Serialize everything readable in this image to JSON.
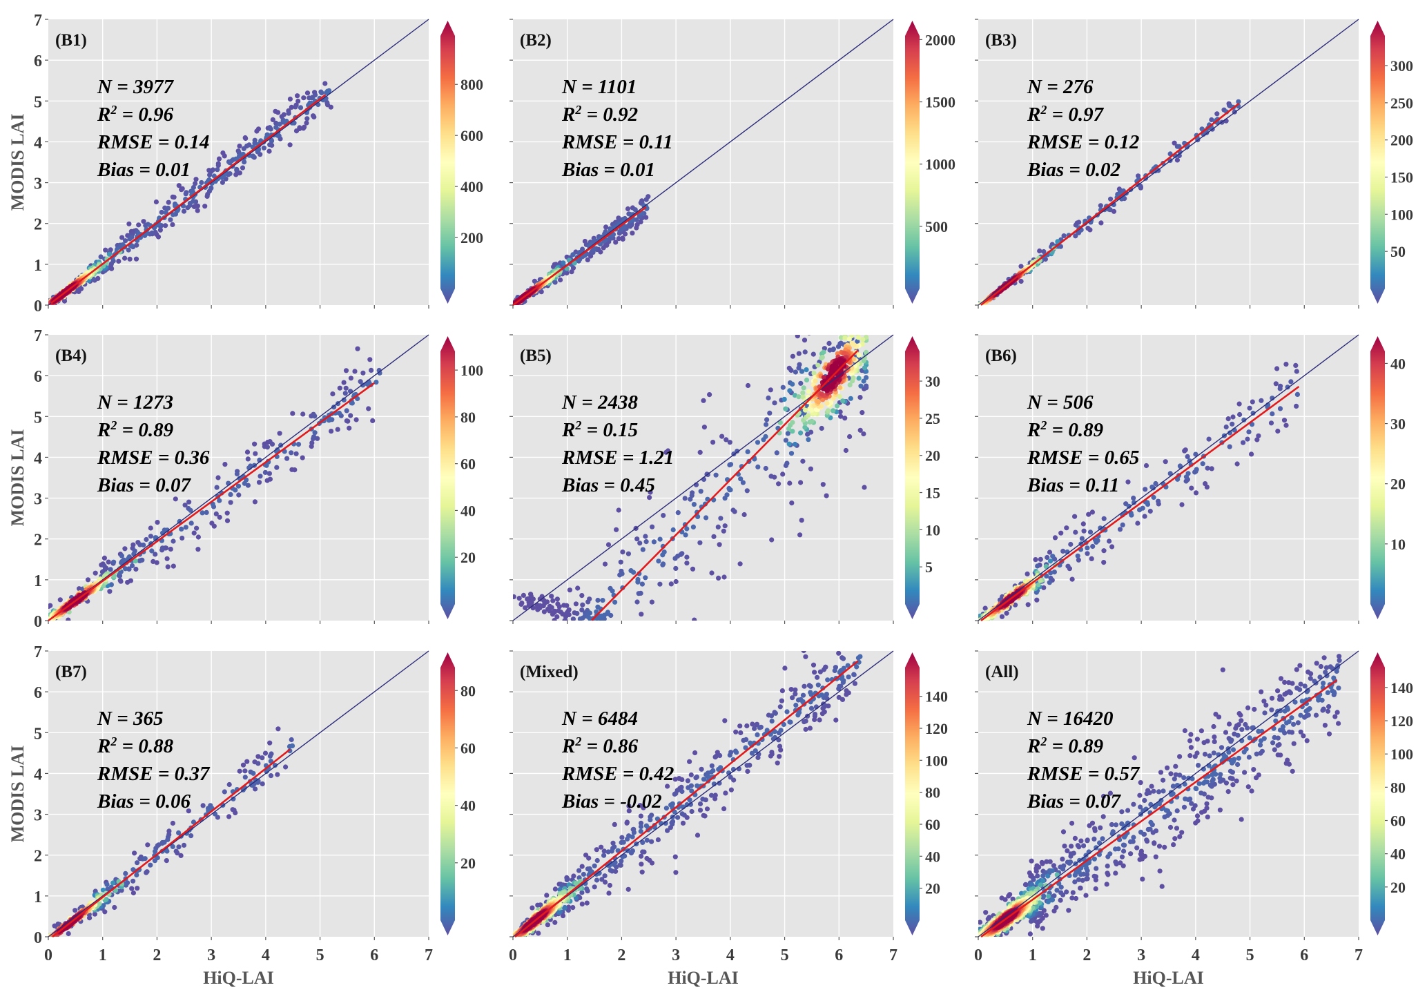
{
  "chart_data": {
    "type": "scatter",
    "title": "",
    "xlabel": "HiQ-LAI",
    "ylabel": "MODIS LAI",
    "xlim": [
      0,
      7
    ],
    "ylim": [
      0,
      7
    ],
    "xticks": [
      "0",
      "1",
      "2",
      "3",
      "4",
      "5",
      "6",
      "7"
    ],
    "yticks": [
      "0",
      "1",
      "2",
      "3",
      "4",
      "5",
      "6",
      "7"
    ],
    "grid": true,
    "colormap": "Spectral_r (density)",
    "reference_line": "1:1",
    "fit_line_color": "#e31a1c",
    "reference_line_color": "#2b2b7a",
    "panels": [
      {
        "label": "(B1)",
        "N": "N = 3977",
        "R2": "0.96",
        "RMSE": "RMSE = 0.14",
        "Bias": "Bias = 0.01",
        "fit": {
          "slope": 1.01,
          "intercept": 0.0,
          "x_range": [
            0.05,
            5.1
          ]
        },
        "spread": 0.22,
        "x_max": 5.2,
        "cluster_center": 0.3,
        "colorbar": {
          "max": 990,
          "ticks": [
            200,
            400,
            600,
            800
          ]
        }
      },
      {
        "label": "(B2)",
        "N": "N = 1101",
        "R2": "0.92",
        "RMSE": "RMSE = 0.11",
        "Bias": "Bias = 0.01",
        "fit": {
          "slope": 0.98,
          "intercept": 0.0,
          "x_range": [
            0.0,
            2.45
          ]
        },
        "spread": 0.18,
        "x_max": 2.5,
        "cluster_center": 0.2,
        "colorbar": {
          "max": 2030,
          "ticks": [
            500,
            1000,
            1500,
            2000
          ]
        }
      },
      {
        "label": "(B3)",
        "N": "N = 276",
        "R2": "0.97",
        "RMSE": "RMSE = 0.12",
        "Bias": "Bias = 0.02",
        "fit": {
          "slope": 1.04,
          "intercept": -0.05,
          "x_range": [
            0.05,
            4.8
          ]
        },
        "spread": 0.12,
        "x_max": 4.8,
        "cluster_center": 0.5,
        "colorbar": {
          "max": 340,
          "ticks": [
            50,
            100,
            150,
            200,
            250,
            300
          ]
        }
      },
      {
        "label": "(B4)",
        "N": "N = 1273",
        "R2": "0.89",
        "RMSE": "RMSE = 0.36",
        "Bias": "Bias = 0.07",
        "fit": {
          "slope": 0.97,
          "intercept": 0.0,
          "x_range": [
            0.0,
            6.0
          ]
        },
        "spread": 0.35,
        "x_max": 6.1,
        "cluster_center": 0.5,
        "colorbar": {
          "max": 108,
          "ticks": [
            20,
            40,
            60,
            80,
            100
          ]
        }
      },
      {
        "label": "(B5)",
        "N": "N = 2438",
        "R2": "0.15",
        "RMSE": "RMSE = 1.21",
        "Bias": "Bias = 0.45",
        "fit": {
          "slope": 1.35,
          "intercept": -1.95,
          "x_range": [
            1.45,
            6.35
          ]
        },
        "spread": 1.0,
        "x_max": 6.5,
        "cluster_center": 5.9,
        "colorbar": {
          "max": 34,
          "ticks": [
            5,
            10,
            15,
            20,
            25,
            30
          ]
        }
      },
      {
        "label": "(B6)",
        "N": "N = 506",
        "R2": "0.89",
        "RMSE": "RMSE = 0.65",
        "Bias": "Bias = 0.11",
        "fit": {
          "slope": 0.98,
          "intercept": -0.05,
          "x_range": [
            0.05,
            5.9
          ]
        },
        "spread": 0.4,
        "x_max": 5.9,
        "cluster_center": 0.6,
        "colorbar": {
          "max": 42,
          "ticks": [
            10,
            20,
            30,
            40
          ]
        }
      },
      {
        "label": "(B7)",
        "N": "N = 365",
        "R2": "0.88",
        "RMSE": "RMSE = 0.37",
        "Bias": "Bias = 0.06",
        "fit": {
          "slope": 1.05,
          "intercept": -0.08,
          "x_range": [
            0.05,
            4.45
          ]
        },
        "spread": 0.3,
        "x_max": 4.5,
        "cluster_center": 0.4,
        "colorbar": {
          "max": 88,
          "ticks": [
            20,
            40,
            60,
            80
          ]
        }
      },
      {
        "label": "(Mixed)",
        "N": "N = 6484",
        "R2": "0.86",
        "RMSE": "RMSE = 0.42",
        "Bias": "Bias = -0.02",
        "fit": {
          "slope": 1.07,
          "intercept": -0.04,
          "x_range": [
            0.0,
            6.35
          ]
        },
        "spread": 0.45,
        "x_max": 6.4,
        "cluster_center": 0.4,
        "colorbar": {
          "max": 158,
          "ticks": [
            20,
            40,
            60,
            80,
            100,
            120,
            140
          ]
        }
      },
      {
        "label": "(All)",
        "N": "N = 16420",
        "R2": "0.89",
        "RMSE": "RMSE = 0.57",
        "Bias": "Bias = 0.07",
        "fit": {
          "slope": 0.96,
          "intercept": -0.05,
          "x_range": [
            0.0,
            6.6
          ]
        },
        "spread": 0.6,
        "x_max": 6.65,
        "cluster_center": 0.5,
        "colorbar": {
          "max": 152,
          "ticks": [
            20,
            40,
            60,
            80,
            100,
            120,
            140
          ]
        }
      }
    ]
  }
}
